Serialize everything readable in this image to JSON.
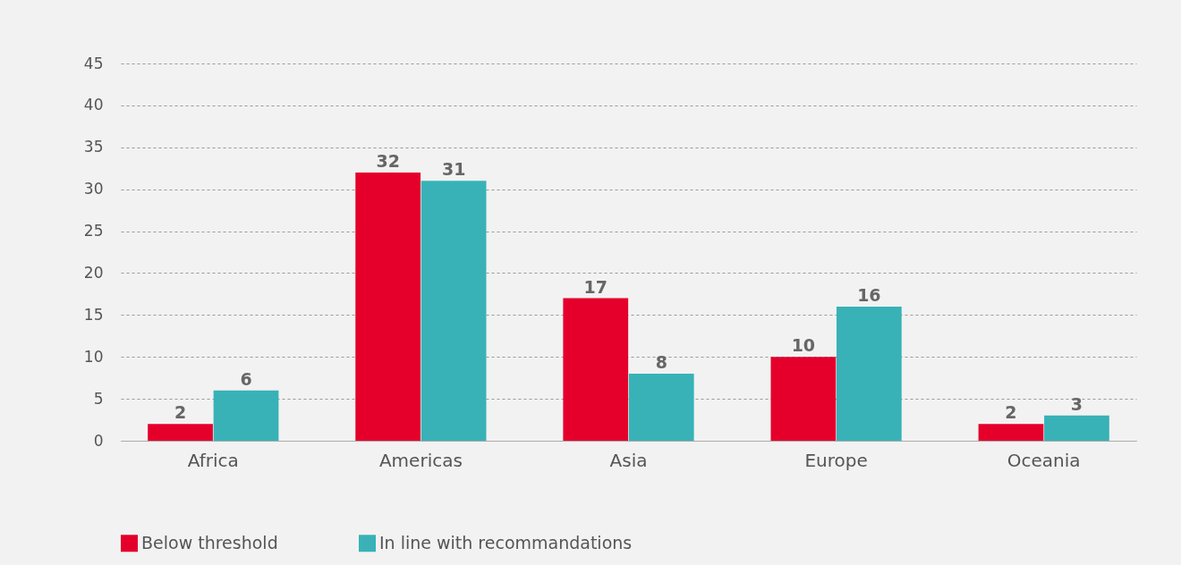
{
  "chart_data": {
    "type": "bar",
    "categories": [
      "Africa",
      "Americas",
      "Asia",
      "Europe",
      "Oceania"
    ],
    "series": [
      {
        "name": "Below threshold",
        "color": "#e4002b",
        "values": [
          2,
          32,
          17,
          10,
          2
        ]
      },
      {
        "name": "In line with recommandations",
        "color": "#38b2b7",
        "values": [
          6,
          31,
          8,
          16,
          3
        ]
      }
    ],
    "ylim": [
      0,
      45
    ],
    "yticks": [
      0,
      5,
      10,
      15,
      20,
      25,
      30,
      35,
      40,
      45
    ],
    "grid": "y",
    "legend": "bottom left",
    "data_labels": true
  }
}
